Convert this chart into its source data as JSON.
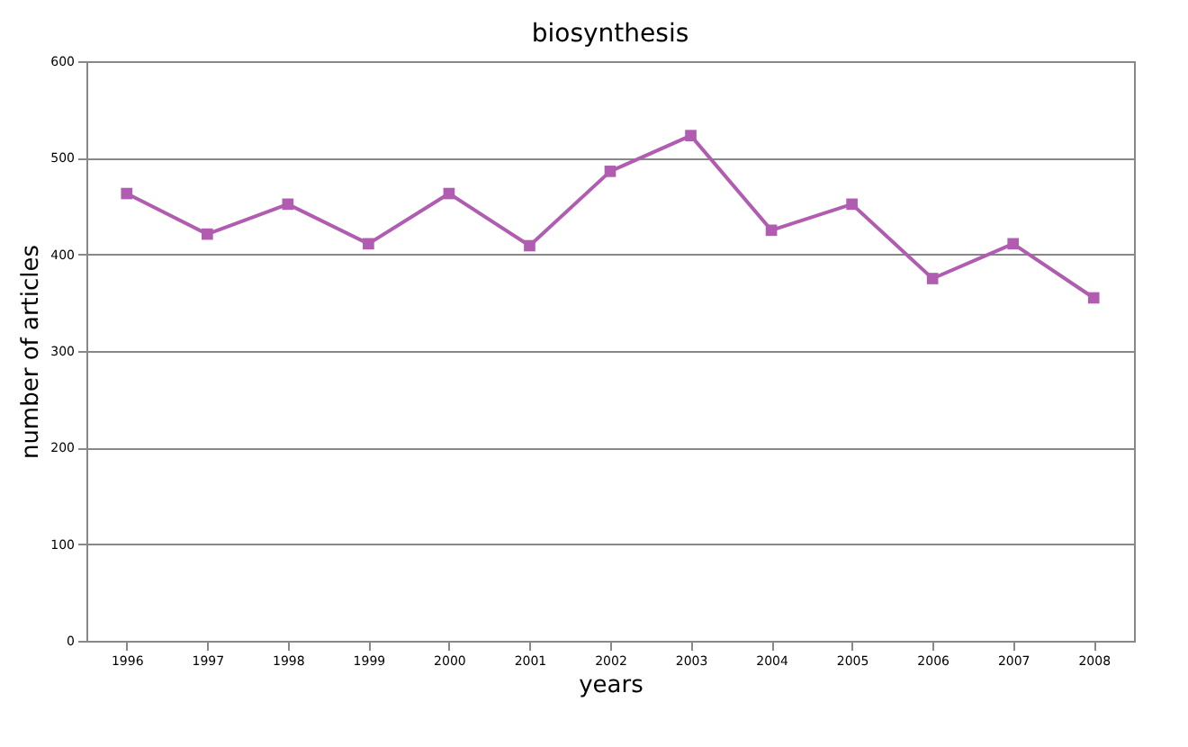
{
  "chart_data": {
    "type": "line",
    "title": "biosynthesis",
    "xlabel": "years",
    "ylabel": "number of articles",
    "categories": [
      "1996",
      "1997",
      "1998",
      "1999",
      "2000",
      "2001",
      "2002",
      "2003",
      "2004",
      "2005",
      "2006",
      "2007",
      "2008"
    ],
    "series": [
      {
        "color": "#b05cb0",
        "values": [
          463,
          421,
          452,
          411,
          463,
          409,
          486,
          523,
          425,
          452,
          375,
          411,
          355
        ]
      }
    ],
    "ylim": [
      0,
      600
    ],
    "yticks": [
      0,
      100,
      200,
      300,
      400,
      500,
      600
    ],
    "grid": "y",
    "marker": "square",
    "line_style": "solid",
    "legend": false
  }
}
